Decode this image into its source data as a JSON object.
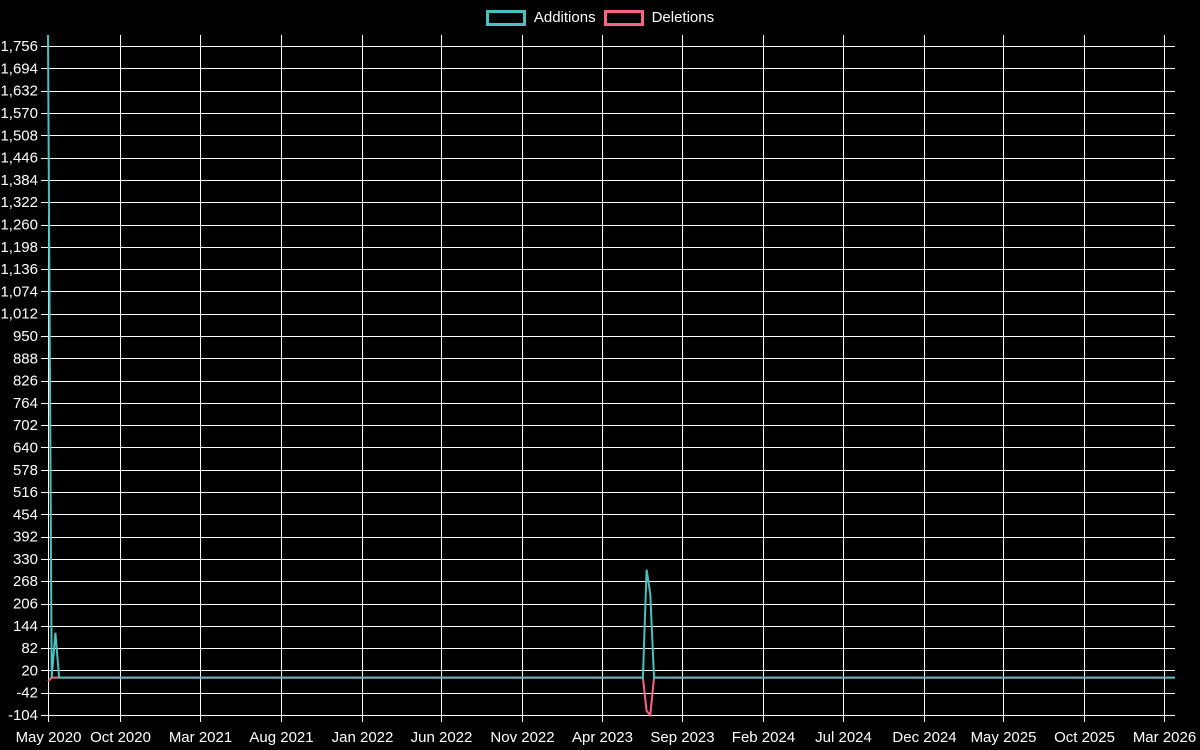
{
  "page": {
    "background": "#000000",
    "text_color": "#ffffff",
    "grid_color": "#ffffff"
  },
  "legend": {
    "items": [
      {
        "label": "Additions",
        "color": "#4bc0c0"
      },
      {
        "label": "Deletions",
        "color": "#ff6384"
      }
    ]
  },
  "chart_data": {
    "type": "line",
    "title": "",
    "xlabel": "",
    "ylabel": "",
    "legend_position": "top-center",
    "grid": true,
    "background": "#000000",
    "grid_color": "#ffffff",
    "text_color": "#ffffff",
    "x_range": [
      "2020-05-17",
      "2026-03-22"
    ],
    "y_min": -104,
    "y_max": 1787,
    "y_tick_step": 62,
    "y_ticks": [
      {
        "value": 1756,
        "label": "1,756"
      },
      {
        "value": 1694,
        "label": "1,694"
      },
      {
        "value": 1632,
        "label": "1,632"
      },
      {
        "value": 1570,
        "label": "1,570"
      },
      {
        "value": 1508,
        "label": "1,508"
      },
      {
        "value": 1446,
        "label": "1,446"
      },
      {
        "value": 1384,
        "label": "1,384"
      },
      {
        "value": 1322,
        "label": "1,322"
      },
      {
        "value": 1260,
        "label": "1,260"
      },
      {
        "value": 1198,
        "label": "1,198"
      },
      {
        "value": 1136,
        "label": "1,136"
      },
      {
        "value": 1074,
        "label": "1,074"
      },
      {
        "value": 1012,
        "label": "1,012"
      },
      {
        "value": 950,
        "label": "950"
      },
      {
        "value": 888,
        "label": "888"
      },
      {
        "value": 826,
        "label": "826"
      },
      {
        "value": 764,
        "label": "764"
      },
      {
        "value": 702,
        "label": "702"
      },
      {
        "value": 640,
        "label": "640"
      },
      {
        "value": 578,
        "label": "578"
      },
      {
        "value": 516,
        "label": "516"
      },
      {
        "value": 454,
        "label": "454"
      },
      {
        "value": 392,
        "label": "392"
      },
      {
        "value": 330,
        "label": "330"
      },
      {
        "value": 268,
        "label": "268"
      },
      {
        "value": 206,
        "label": "206"
      },
      {
        "value": 144,
        "label": "144"
      },
      {
        "value": 82,
        "label": "82"
      },
      {
        "value": 20,
        "label": "20"
      },
      {
        "value": -42,
        "label": "-42"
      },
      {
        "value": -104,
        "label": "-104"
      }
    ],
    "x_ticks": [
      {
        "label": "May 2020",
        "date": "2020-05-01"
      },
      {
        "label": "Oct 2020",
        "date": "2020-10-01"
      },
      {
        "label": "Mar 2021",
        "date": "2021-03-01"
      },
      {
        "label": "Aug 2021",
        "date": "2021-08-01"
      },
      {
        "label": "Jan 2022",
        "date": "2022-01-01"
      },
      {
        "label": "Jun 2022",
        "date": "2022-06-01"
      },
      {
        "label": "Nov 2022",
        "date": "2022-11-01"
      },
      {
        "label": "Apr 2023",
        "date": "2023-04-01"
      },
      {
        "label": "Sep 2023",
        "date": "2023-09-01"
      },
      {
        "label": "Feb 2024",
        "date": "2024-02-01"
      },
      {
        "label": "Jul 2024",
        "date": "2024-07-01"
      },
      {
        "label": "Dec 2024",
        "date": "2024-12-01"
      },
      {
        "label": "May 2025",
        "date": "2025-05-01"
      },
      {
        "label": "Oct 2025",
        "date": "2025-10-01"
      },
      {
        "label": "Mar 2026",
        "date": "2026-03-01"
      }
    ],
    "series": [
      {
        "name": "Additions",
        "color": "#4bc0c0",
        "line_width": 2,
        "points": [
          [
            "2020-05-17",
            1787
          ],
          [
            "2020-05-24",
            0
          ],
          [
            "2020-05-31",
            125
          ],
          [
            "2020-06-07",
            0
          ],
          [
            "2023-06-18",
            0
          ],
          [
            "2023-06-25",
            300
          ],
          [
            "2023-07-02",
            232
          ],
          [
            "2023-07-09",
            0
          ],
          [
            "2026-03-22",
            0
          ]
        ]
      },
      {
        "name": "Deletions",
        "color": "#ff6384",
        "line_width": 2,
        "points": [
          [
            "2020-05-17",
            -10
          ],
          [
            "2020-05-24",
            0
          ],
          [
            "2023-06-18",
            0
          ],
          [
            "2023-06-25",
            -93
          ],
          [
            "2023-07-02",
            -104
          ],
          [
            "2023-07-09",
            0
          ],
          [
            "2026-03-22",
            0
          ]
        ]
      }
    ]
  }
}
